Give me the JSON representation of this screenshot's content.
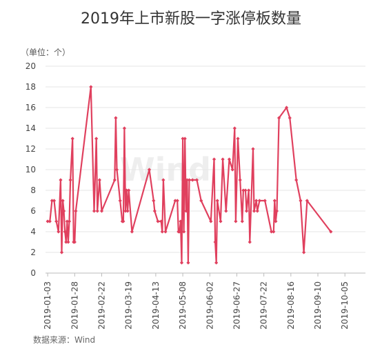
{
  "chart_data": {
    "type": "line",
    "title": "2019年上市新股一字涨停板数量",
    "unit_label": "（单位：个）",
    "source": "数据来源：Wind",
    "watermark": "Wind",
    "color": "#e0405e",
    "ylim": [
      0,
      20
    ],
    "yticks": [
      "0",
      "2",
      "4",
      "6",
      "8",
      "10",
      "12",
      "14",
      "16",
      "18",
      "20"
    ],
    "xlim": [
      "2019-01-01",
      "2019-10-24"
    ],
    "xticks": [
      "2019-01-03",
      "2019-01-28",
      "2019-02-22",
      "2019-03-19",
      "2019-04-13",
      "2019-05-08",
      "2019-06-02",
      "2019-06-27",
      "2019-07-22",
      "2019-08-16",
      "2019-09-10",
      "2019-10-05"
    ],
    "grid": true,
    "series": [
      {
        "points": [
          [
            "2019-01-03",
            5
          ],
          [
            "2019-01-05",
            5
          ],
          [
            "2019-01-07",
            7
          ],
          [
            "2019-01-09",
            7
          ],
          [
            "2019-01-11",
            5
          ],
          [
            "2019-01-13",
            4
          ],
          [
            "2019-01-15",
            9
          ],
          [
            "2019-01-16",
            2
          ],
          [
            "2019-01-17",
            7
          ],
          [
            "2019-01-18",
            6
          ],
          [
            "2019-01-19",
            4
          ],
          [
            "2019-01-20",
            3
          ],
          [
            "2019-01-21",
            5
          ],
          [
            "2019-01-22",
            3
          ],
          [
            "2019-01-23",
            5
          ],
          [
            "2019-01-24",
            9
          ],
          [
            "2019-01-26",
            13
          ],
          [
            "2019-01-27",
            3
          ],
          [
            "2019-01-28",
            3
          ],
          [
            "2019-01-29",
            6
          ],
          [
            "2019-02-12",
            18
          ],
          [
            "2019-02-15",
            6
          ],
          [
            "2019-02-17",
            13
          ],
          [
            "2019-02-18",
            6
          ],
          [
            "2019-02-20",
            9
          ],
          [
            "2019-02-22",
            6
          ],
          [
            "2019-03-06",
            9
          ],
          [
            "2019-03-07",
            15
          ],
          [
            "2019-03-08",
            10
          ],
          [
            "2019-03-11",
            7
          ],
          [
            "2019-03-13",
            5
          ],
          [
            "2019-03-14",
            5
          ],
          [
            "2019-03-15",
            14
          ],
          [
            "2019-03-16",
            6
          ],
          [
            "2019-03-17",
            8
          ],
          [
            "2019-03-18",
            6
          ],
          [
            "2019-03-19",
            8
          ],
          [
            "2019-03-22",
            4
          ],
          [
            "2019-04-07",
            10
          ],
          [
            "2019-04-11",
            7
          ],
          [
            "2019-04-12",
            6
          ],
          [
            "2019-04-15",
            5
          ],
          [
            "2019-04-18",
            5
          ],
          [
            "2019-04-19",
            4
          ],
          [
            "2019-04-20",
            9
          ],
          [
            "2019-04-22",
            4
          ],
          [
            "2019-05-01",
            7
          ],
          [
            "2019-05-03",
            7
          ],
          [
            "2019-05-04",
            4
          ],
          [
            "2019-05-05",
            4
          ],
          [
            "2019-05-06",
            5
          ],
          [
            "2019-05-07",
            1
          ],
          [
            "2019-05-08",
            13
          ],
          [
            "2019-05-09",
            4
          ],
          [
            "2019-05-10",
            13
          ],
          [
            "2019-05-11",
            6
          ],
          [
            "2019-05-12",
            9
          ],
          [
            "2019-05-13",
            1
          ],
          [
            "2019-05-14",
            9
          ],
          [
            "2019-05-17",
            9
          ],
          [
            "2019-05-21",
            9
          ],
          [
            "2019-05-25",
            7
          ],
          [
            "2019-06-03",
            5
          ],
          [
            "2019-06-06",
            11
          ],
          [
            "2019-06-07",
            3
          ],
          [
            "2019-06-08",
            1
          ],
          [
            "2019-06-09",
            7
          ],
          [
            "2019-06-12",
            5
          ],
          [
            "2019-06-14",
            11
          ],
          [
            "2019-06-17",
            6
          ],
          [
            "2019-06-20",
            11
          ],
          [
            "2019-06-23",
            10
          ],
          [
            "2019-06-25",
            14
          ],
          [
            "2019-06-26",
            5
          ],
          [
            "2019-06-28",
            13
          ],
          [
            "2019-06-30",
            9
          ],
          [
            "2019-07-02",
            5
          ],
          [
            "2019-07-03",
            8
          ],
          [
            "2019-07-05",
            8
          ],
          [
            "2019-07-06",
            6
          ],
          [
            "2019-07-08",
            8
          ],
          [
            "2019-07-09",
            3
          ],
          [
            "2019-07-12",
            12
          ],
          [
            "2019-07-13",
            6
          ],
          [
            "2019-07-15",
            7
          ],
          [
            "2019-07-16",
            6
          ],
          [
            "2019-07-18",
            7
          ],
          [
            "2019-07-23",
            7
          ],
          [
            "2019-07-29",
            4
          ],
          [
            "2019-07-31",
            4
          ],
          [
            "2019-08-01",
            7
          ],
          [
            "2019-08-02",
            5
          ],
          [
            "2019-08-03",
            6
          ],
          [
            "2019-08-05",
            15
          ],
          [
            "2019-08-12",
            16
          ],
          [
            "2019-08-15",
            15
          ],
          [
            "2019-08-21",
            9
          ],
          [
            "2019-08-25",
            7
          ],
          [
            "2019-08-28",
            2
          ],
          [
            "2019-08-31",
            7
          ],
          [
            "2019-09-22",
            4
          ]
        ]
      }
    ]
  }
}
